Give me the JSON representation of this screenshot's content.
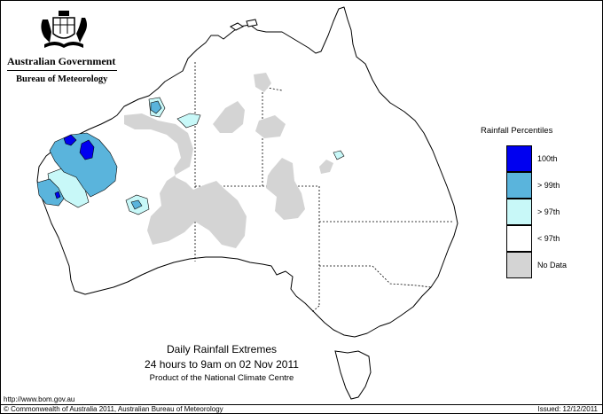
{
  "logo": {
    "government": "Australian Government",
    "agency": "Bureau of Meteorology",
    "crest_icon": "coat-of-arms-icon"
  },
  "legend": {
    "title": "Rainfall Percentiles",
    "items": [
      {
        "label": "100th",
        "color": "#0000f0"
      },
      {
        "label": "> 99th",
        "color": "#5ab4dc"
      },
      {
        "label": "> 97th",
        "color": "#c8f8f8"
      },
      {
        "label": "< 97th",
        "color": "#ffffff"
      },
      {
        "label": "No Data",
        "color": "#d4d4d4"
      }
    ]
  },
  "title": {
    "line1": "Daily Rainfall Extremes",
    "line2": "24 hours to 9am on 02 Nov 2011",
    "line3": "Product of the National Climate Centre"
  },
  "footer": {
    "url": "http://www.bom.gov.au",
    "copyright": "© Commonwealth of Australia 2011, Australian Bureau of Meteorology",
    "issued": "Issued: 12/12/2011"
  }
}
